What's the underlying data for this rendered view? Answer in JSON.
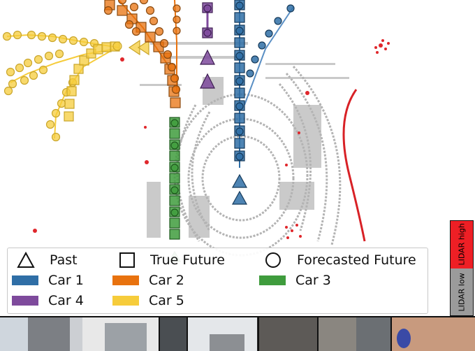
{
  "legend": {
    "markers": [
      {
        "label": "Past",
        "symbol": "triangle"
      },
      {
        "label": "True Future",
        "symbol": "square"
      },
      {
        "label": "Forecasted Future",
        "symbol": "circle"
      }
    ],
    "cars": [
      {
        "label": "Car 1",
        "color": "#2f6ea6"
      },
      {
        "label": "Car 2",
        "color": "#e8720e"
      },
      {
        "label": "Car 3",
        "color": "#3f9c3d"
      },
      {
        "label": "Car 4",
        "color": "#7e4a9c"
      },
      {
        "label": "Car 5",
        "color": "#f6cc3b"
      }
    ]
  },
  "colorbar": {
    "high_label": "LIDAR high",
    "low_label": "LIDAR low",
    "high_color": "#ee1f25",
    "low_color": "#9b9b9b"
  },
  "camera_strip": {
    "frames": 8
  }
}
